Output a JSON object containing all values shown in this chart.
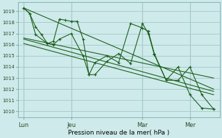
{
  "bg_color": "#ceeaea",
  "grid_color": "#aacccc",
  "line_color": "#1a5e1a",
  "ylim": [
    1009.5,
    1019.8
  ],
  "yticks": [
    1010,
    1011,
    1012,
    1013,
    1014,
    1015,
    1016,
    1017,
    1018,
    1019
  ],
  "xtick_labels": [
    "Lun",
    "Jeu",
    "Mar",
    "Mer"
  ],
  "xtick_positions": [
    0,
    4,
    10,
    14
  ],
  "vline_positions": [
    0,
    4,
    10,
    14
  ],
  "xlabel": "Pression niveau de la mer( hPa )",
  "trend_lines": [
    [
      [
        0,
        16
      ],
      [
        1019.3,
        1012.0
      ]
    ],
    [
      [
        0,
        16
      ],
      [
        1016.5,
        1011.8
      ]
    ],
    [
      [
        0,
        16
      ],
      [
        1016.1,
        1011.5
      ]
    ],
    [
      [
        0,
        16
      ],
      [
        1016.6,
        1013.0
      ]
    ]
  ],
  "series1_x": [
    0,
    0.5,
    1,
    1.5,
    2,
    2.5,
    3,
    3.5,
    4,
    4.5,
    5,
    5.5,
    6,
    7,
    8,
    9,
    10,
    10.5,
    11,
    12,
    13,
    14,
    15,
    16
  ],
  "series1_y": [
    1019.3,
    1018.8,
    1017.6,
    1016.9,
    1016.1,
    1016.3,
    1018.3,
    1018.2,
    1018.1,
    1018.1,
    1016.5,
    1013.3,
    1014.4,
    1015.0,
    1014.4,
    1017.9,
    1017.5,
    1017.2,
    1015.2,
    1012.8,
    1014.0,
    1011.5,
    1010.3,
    1010.2
  ],
  "series2_x": [
    0,
    0.5,
    1,
    2,
    2.5,
    3,
    4,
    5,
    5.5,
    6,
    7,
    8,
    9,
    10,
    10.5,
    11,
    12,
    13,
    14,
    15,
    16
  ],
  "series2_y": [
    1019.3,
    1018.8,
    1016.9,
    1016.1,
    1016.0,
    1016.5,
    1017.0,
    1015.0,
    1013.3,
    1013.3,
    1014.5,
    1015.2,
    1014.3,
    1017.9,
    1017.0,
    1015.1,
    1012.8,
    1012.8,
    1014.0,
    1011.5,
    1010.2
  ]
}
